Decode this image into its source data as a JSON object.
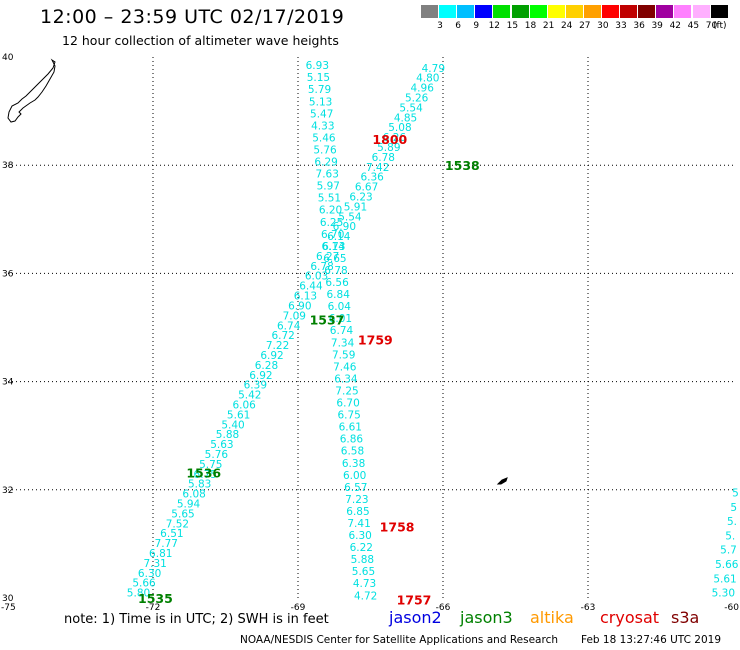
{
  "header": {
    "title": "12:00 – 23:59 UTC 02/17/2019",
    "subtitle": "12 hour collection of altimeter wave heights"
  },
  "legend": {
    "unit": "(ft)",
    "colors": [
      "#808080",
      "#00ffff",
      "#00bfff",
      "#0000ff",
      "#00e000",
      "#00a000",
      "#00ff00",
      "#ffff00",
      "#ffd000",
      "#ffa000",
      "#ff0000",
      "#c00000",
      "#800000",
      "#a000a0",
      "#ff80ff",
      "#ffb0ff",
      "#000000"
    ],
    "labels": [
      "3",
      "6",
      "9",
      "12",
      "15",
      "18",
      "21",
      "24",
      "27",
      "30",
      "33",
      "36",
      "39",
      "42",
      "45",
      "70"
    ]
  },
  "axes": {
    "x_labels": [
      "-75",
      "-72",
      "-69",
      "-66",
      "-63",
      "-60"
    ],
    "y_labels": [
      "40",
      "38",
      "36",
      "34",
      "32",
      "30"
    ]
  },
  "tracks": [
    {
      "name": "track-a",
      "color": "#00e0e0",
      "start": [
        -66.2,
        39.8
      ],
      "end": [
        -72.3,
        30.1
      ],
      "values": [
        "4.79",
        "4.80",
        "4.96",
        "5.26",
        "5.54",
        "4.85",
        "5.08",
        "6.26",
        "5.89",
        "6.78",
        "7.42",
        "6.36",
        "6.67",
        "6.23",
        "5.91",
        "5.54",
        "6.90",
        "6.14",
        "6.14",
        "6.27",
        "6.78",
        "6.03",
        "6.44",
        "6.13",
        "6.90",
        "7.09",
        "6.74",
        "6.72",
        "7.22",
        "6.92",
        "6.28",
        "6.92",
        "6.39",
        "5.42",
        "6.06",
        "5.61",
        "5.40",
        "5.88",
        "5.63",
        "5.76",
        "5.75",
        "6.75",
        "5.83",
        "6.08",
        "5.94",
        "5.65",
        "7.52",
        "6.51",
        "7.77",
        "6.81",
        "7.31",
        "6.30",
        "5.66",
        "5.80"
      ]
    },
    {
      "name": "track-b",
      "color": "#00e0e0",
      "start": [
        -68.6,
        39.85
      ],
      "end": [
        -67.6,
        30.05
      ],
      "values": [
        "6.93",
        "5.15",
        "5.79",
        "5.13",
        "5.47",
        "4.33",
        "5.46",
        "5.76",
        "6.29",
        "7.63",
        "5.97",
        "5.51",
        "6.20",
        "6.25",
        "6.70",
        "6.73",
        "6.65",
        "6.78",
        "6.56",
        "6.84",
        "6.04",
        "6.01",
        "6.74",
        "7.34",
        "7.59",
        "7.46",
        "6.34",
        "7.25",
        "6.70",
        "6.75",
        "6.61",
        "6.86",
        "6.58",
        "6.38",
        "6.00",
        "6.57",
        "7.23",
        "6.85",
        "7.41",
        "6.30",
        "6.22",
        "5.88",
        "5.65",
        "4.73",
        "4.72"
      ]
    },
    {
      "name": "track-c",
      "color": "#00e0e0",
      "start": [
        -59.95,
        31.95
      ],
      "end": [
        -60.2,
        30.1
      ],
      "values": [
        "5",
        "5",
        "5.",
        "5.",
        "5.7",
        "5.66",
        "5.61",
        "5.30"
      ]
    }
  ],
  "time_labels": [
    {
      "text": "1800",
      "color": "#e00000",
      "lon": -67.1,
      "lat": 38.48
    },
    {
      "text": "1538",
      "color": "#008000",
      "lon": -65.6,
      "lat": 38.0
    },
    {
      "text": "1537",
      "color": "#008000",
      "lon": -68.4,
      "lat": 35.15
    },
    {
      "text": "1759",
      "color": "#e00000",
      "lon": -67.4,
      "lat": 34.78
    },
    {
      "text": "1536",
      "color": "#008000",
      "lon": -70.95,
      "lat": 32.32
    },
    {
      "text": "1758",
      "color": "#e00000",
      "lon": -66.95,
      "lat": 31.32
    },
    {
      "text": "1535",
      "color": "#008000",
      "lon": -71.95,
      "lat": 30.0
    },
    {
      "text": "1757",
      "color": "#e00000",
      "lon": -66.6,
      "lat": 29.97
    }
  ],
  "footer": {
    "note": "note:  1) Time is in UTC; 2) SWH is in feet",
    "satellites": [
      {
        "name": "jason2",
        "color": "#0000e0"
      },
      {
        "name": "jason3",
        "color": "#008000"
      },
      {
        "name": "altika",
        "color": "#ff9900"
      },
      {
        "name": "cryosat",
        "color": "#e00000"
      },
      {
        "name": "s3a",
        "color": "#800000"
      }
    ],
    "credit": "NOAA/NESDIS Center for Satellite Applications and Research",
    "timestamp": "Feb 18 13:27:46 UTC 2019"
  }
}
